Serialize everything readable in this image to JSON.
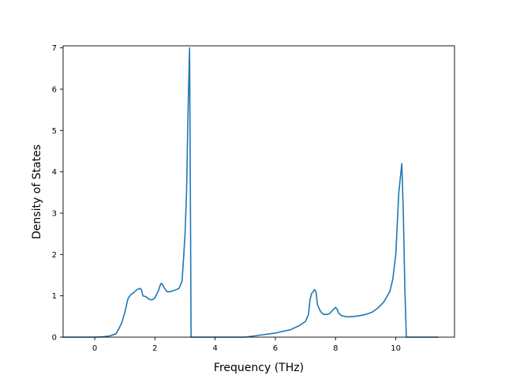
{
  "chart_data": {
    "type": "line",
    "xlabel": "Frequency (THz)",
    "ylabel": "Density of States",
    "xlim": [
      -1.05,
      11.95
    ],
    "ylim": [
      0,
      7.05
    ],
    "xticks": [
      0,
      2,
      4,
      6,
      8,
      10
    ],
    "yticks": [
      0,
      1,
      2,
      3,
      4,
      5,
      6,
      7
    ],
    "grid": false,
    "series": [
      {
        "color": "#1f77b4",
        "x": [
          -1.05,
          0.0,
          0.3,
          0.5,
          0.7,
          0.8,
          0.9,
          1.0,
          1.1,
          1.15,
          1.2,
          1.3,
          1.4,
          1.5,
          1.55,
          1.6,
          1.7,
          1.8,
          1.9,
          2.0,
          2.1,
          2.2,
          2.25,
          2.3,
          2.4,
          2.5,
          2.6,
          2.7,
          2.8,
          2.9,
          2.95,
          3.0,
          3.05,
          3.1,
          3.15,
          3.18,
          3.2,
          3.25,
          4.0,
          5.0,
          5.5,
          6.0,
          6.5,
          6.8,
          7.0,
          7.1,
          7.15,
          7.2,
          7.3,
          7.35,
          7.4,
          7.5,
          7.6,
          7.7,
          7.8,
          7.9,
          8.0,
          8.05,
          8.1,
          8.2,
          8.4,
          8.6,
          8.8,
          9.0,
          9.2,
          9.4,
          9.6,
          9.8,
          9.9,
          10.0,
          10.1,
          10.2,
          10.25,
          10.3,
          10.35,
          10.4,
          11.4
        ],
        "y": [
          0,
          0,
          0.01,
          0.03,
          0.08,
          0.2,
          0.35,
          0.6,
          0.92,
          0.98,
          1.03,
          1.08,
          1.15,
          1.18,
          1.15,
          1.0,
          0.98,
          0.92,
          0.9,
          0.95,
          1.1,
          1.3,
          1.28,
          1.2,
          1.1,
          1.1,
          1.12,
          1.15,
          1.18,
          1.35,
          1.9,
          2.5,
          3.5,
          5.5,
          7.0,
          3.0,
          0,
          0,
          0,
          0,
          0.05,
          0.1,
          0.18,
          0.28,
          0.38,
          0.55,
          0.9,
          1.05,
          1.15,
          1.1,
          0.78,
          0.62,
          0.55,
          0.55,
          0.57,
          0.65,
          0.72,
          0.68,
          0.58,
          0.52,
          0.49,
          0.5,
          0.52,
          0.55,
          0.6,
          0.7,
          0.85,
          1.1,
          1.4,
          2.0,
          3.5,
          4.2,
          3.0,
          1.2,
          0,
          0,
          0
        ]
      }
    ]
  }
}
